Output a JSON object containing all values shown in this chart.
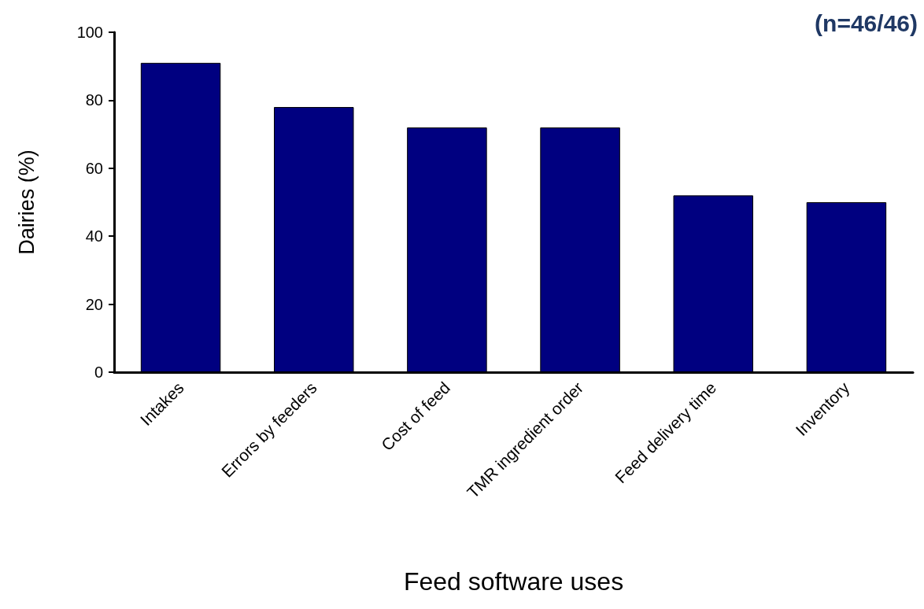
{
  "chart_data": {
    "type": "bar",
    "categories": [
      "Intakes",
      "Errors by feeders",
      "Cost of feed",
      "TMR ingredient order",
      "Feed delivery time",
      "Inventory"
    ],
    "values": [
      91,
      78,
      72,
      72,
      52,
      50
    ],
    "color": "#000080",
    "xlabel": "Feed software uses",
    "ylabel": "Dairies (%)",
    "annotations": [
      "(n=46/46)"
    ],
    "ylim": [
      0,
      100
    ],
    "yticks": [
      0,
      20,
      40,
      60,
      80,
      100
    ],
    "grid": false
  }
}
